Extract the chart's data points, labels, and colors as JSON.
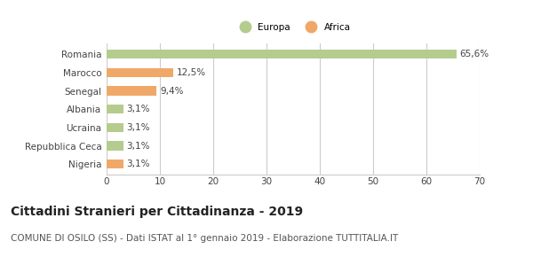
{
  "categories": [
    "Romania",
    "Marocco",
    "Senegal",
    "Albania",
    "Ucraina",
    "Repubblica Ceca",
    "Nigeria"
  ],
  "values": [
    65.6,
    12.5,
    9.4,
    3.1,
    3.1,
    3.1,
    3.1
  ],
  "labels": [
    "65,6%",
    "12,5%",
    "9,4%",
    "3,1%",
    "3,1%",
    "3,1%",
    "3,1%"
  ],
  "colors": [
    "#b5cc8e",
    "#f0a868",
    "#f0a868",
    "#b5cc8e",
    "#b5cc8e",
    "#b5cc8e",
    "#f0a868"
  ],
  "legend": [
    {
      "label": "Europa",
      "color": "#b5cc8e"
    },
    {
      "label": "Africa",
      "color": "#f0a868"
    }
  ],
  "xlim": [
    0,
    70
  ],
  "xticks": [
    0,
    10,
    20,
    30,
    40,
    50,
    60,
    70
  ],
  "title": "Cittadini Stranieri per Cittadinanza - 2019",
  "subtitle": "COMUNE DI OSILO (SS) - Dati ISTAT al 1° gennaio 2019 - Elaborazione TUTTITALIA.IT",
  "bg_color": "#ffffff",
  "grid_color": "#cccccc",
  "bar_height": 0.5,
  "label_fontsize": 7.5,
  "tick_label_fontsize": 7.5,
  "title_fontsize": 10,
  "subtitle_fontsize": 7.5
}
